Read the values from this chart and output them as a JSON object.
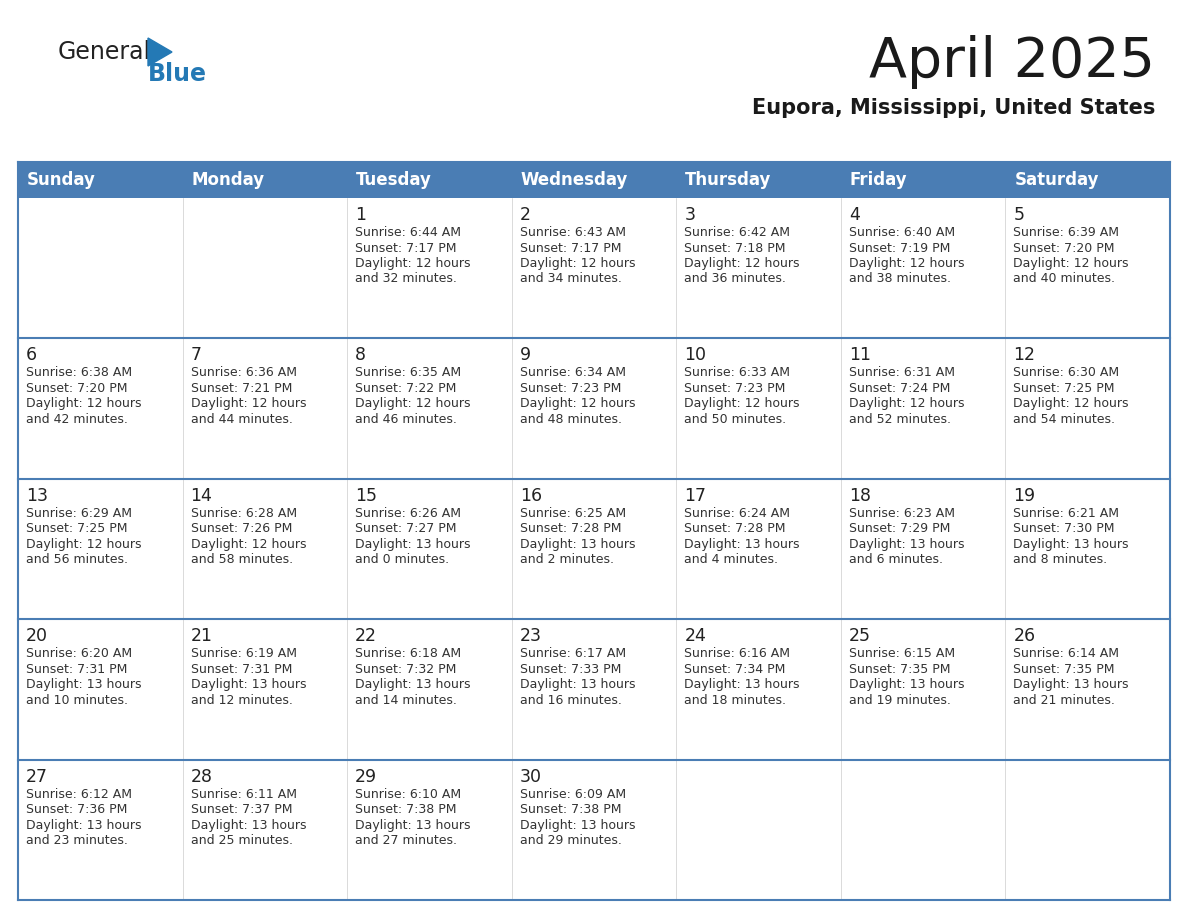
{
  "title": "April 2025",
  "subtitle": "Eupora, Mississippi, United States",
  "header_bg": "#4A7DB4",
  "header_text_color": "#FFFFFF",
  "days_of_week": [
    "Sunday",
    "Monday",
    "Tuesday",
    "Wednesday",
    "Thursday",
    "Friday",
    "Saturday"
  ],
  "cell_bg": "#FFFFFF",
  "cell_bg_alt": "#F0F4FA",
  "cell_border_color": "#4A7DB4",
  "row_separator_color": "#4A7DB4",
  "day_number_color": "#222222",
  "text_color": "#333333",
  "background_color": "#FFFFFF",
  "logo_general_color": "#222222",
  "logo_blue_color": "#2479B5",
  "calendar": [
    [
      {
        "day": "",
        "lines": []
      },
      {
        "day": "",
        "lines": []
      },
      {
        "day": "1",
        "lines": [
          "Sunrise: 6:44 AM",
          "Sunset: 7:17 PM",
          "Daylight: 12 hours",
          "and 32 minutes."
        ]
      },
      {
        "day": "2",
        "lines": [
          "Sunrise: 6:43 AM",
          "Sunset: 7:17 PM",
          "Daylight: 12 hours",
          "and 34 minutes."
        ]
      },
      {
        "day": "3",
        "lines": [
          "Sunrise: 6:42 AM",
          "Sunset: 7:18 PM",
          "Daylight: 12 hours",
          "and 36 minutes."
        ]
      },
      {
        "day": "4",
        "lines": [
          "Sunrise: 6:40 AM",
          "Sunset: 7:19 PM",
          "Daylight: 12 hours",
          "and 38 minutes."
        ]
      },
      {
        "day": "5",
        "lines": [
          "Sunrise: 6:39 AM",
          "Sunset: 7:20 PM",
          "Daylight: 12 hours",
          "and 40 minutes."
        ]
      }
    ],
    [
      {
        "day": "6",
        "lines": [
          "Sunrise: 6:38 AM",
          "Sunset: 7:20 PM",
          "Daylight: 12 hours",
          "and 42 minutes."
        ]
      },
      {
        "day": "7",
        "lines": [
          "Sunrise: 6:36 AM",
          "Sunset: 7:21 PM",
          "Daylight: 12 hours",
          "and 44 minutes."
        ]
      },
      {
        "day": "8",
        "lines": [
          "Sunrise: 6:35 AM",
          "Sunset: 7:22 PM",
          "Daylight: 12 hours",
          "and 46 minutes."
        ]
      },
      {
        "day": "9",
        "lines": [
          "Sunrise: 6:34 AM",
          "Sunset: 7:23 PM",
          "Daylight: 12 hours",
          "and 48 minutes."
        ]
      },
      {
        "day": "10",
        "lines": [
          "Sunrise: 6:33 AM",
          "Sunset: 7:23 PM",
          "Daylight: 12 hours",
          "and 50 minutes."
        ]
      },
      {
        "day": "11",
        "lines": [
          "Sunrise: 6:31 AM",
          "Sunset: 7:24 PM",
          "Daylight: 12 hours",
          "and 52 minutes."
        ]
      },
      {
        "day": "12",
        "lines": [
          "Sunrise: 6:30 AM",
          "Sunset: 7:25 PM",
          "Daylight: 12 hours",
          "and 54 minutes."
        ]
      }
    ],
    [
      {
        "day": "13",
        "lines": [
          "Sunrise: 6:29 AM",
          "Sunset: 7:25 PM",
          "Daylight: 12 hours",
          "and 56 minutes."
        ]
      },
      {
        "day": "14",
        "lines": [
          "Sunrise: 6:28 AM",
          "Sunset: 7:26 PM",
          "Daylight: 12 hours",
          "and 58 minutes."
        ]
      },
      {
        "day": "15",
        "lines": [
          "Sunrise: 6:26 AM",
          "Sunset: 7:27 PM",
          "Daylight: 13 hours",
          "and 0 minutes."
        ]
      },
      {
        "day": "16",
        "lines": [
          "Sunrise: 6:25 AM",
          "Sunset: 7:28 PM",
          "Daylight: 13 hours",
          "and 2 minutes."
        ]
      },
      {
        "day": "17",
        "lines": [
          "Sunrise: 6:24 AM",
          "Sunset: 7:28 PM",
          "Daylight: 13 hours",
          "and 4 minutes."
        ]
      },
      {
        "day": "18",
        "lines": [
          "Sunrise: 6:23 AM",
          "Sunset: 7:29 PM",
          "Daylight: 13 hours",
          "and 6 minutes."
        ]
      },
      {
        "day": "19",
        "lines": [
          "Sunrise: 6:21 AM",
          "Sunset: 7:30 PM",
          "Daylight: 13 hours",
          "and 8 minutes."
        ]
      }
    ],
    [
      {
        "day": "20",
        "lines": [
          "Sunrise: 6:20 AM",
          "Sunset: 7:31 PM",
          "Daylight: 13 hours",
          "and 10 minutes."
        ]
      },
      {
        "day": "21",
        "lines": [
          "Sunrise: 6:19 AM",
          "Sunset: 7:31 PM",
          "Daylight: 13 hours",
          "and 12 minutes."
        ]
      },
      {
        "day": "22",
        "lines": [
          "Sunrise: 6:18 AM",
          "Sunset: 7:32 PM",
          "Daylight: 13 hours",
          "and 14 minutes."
        ]
      },
      {
        "day": "23",
        "lines": [
          "Sunrise: 6:17 AM",
          "Sunset: 7:33 PM",
          "Daylight: 13 hours",
          "and 16 minutes."
        ]
      },
      {
        "day": "24",
        "lines": [
          "Sunrise: 6:16 AM",
          "Sunset: 7:34 PM",
          "Daylight: 13 hours",
          "and 18 minutes."
        ]
      },
      {
        "day": "25",
        "lines": [
          "Sunrise: 6:15 AM",
          "Sunset: 7:35 PM",
          "Daylight: 13 hours",
          "and 19 minutes."
        ]
      },
      {
        "day": "26",
        "lines": [
          "Sunrise: 6:14 AM",
          "Sunset: 7:35 PM",
          "Daylight: 13 hours",
          "and 21 minutes."
        ]
      }
    ],
    [
      {
        "day": "27",
        "lines": [
          "Sunrise: 6:12 AM",
          "Sunset: 7:36 PM",
          "Daylight: 13 hours",
          "and 23 minutes."
        ]
      },
      {
        "day": "28",
        "lines": [
          "Sunrise: 6:11 AM",
          "Sunset: 7:37 PM",
          "Daylight: 13 hours",
          "and 25 minutes."
        ]
      },
      {
        "day": "29",
        "lines": [
          "Sunrise: 6:10 AM",
          "Sunset: 7:38 PM",
          "Daylight: 13 hours",
          "and 27 minutes."
        ]
      },
      {
        "day": "30",
        "lines": [
          "Sunrise: 6:09 AM",
          "Sunset: 7:38 PM",
          "Daylight: 13 hours",
          "and 29 minutes."
        ]
      },
      {
        "day": "",
        "lines": []
      },
      {
        "day": "",
        "lines": []
      },
      {
        "day": "",
        "lines": []
      }
    ]
  ]
}
